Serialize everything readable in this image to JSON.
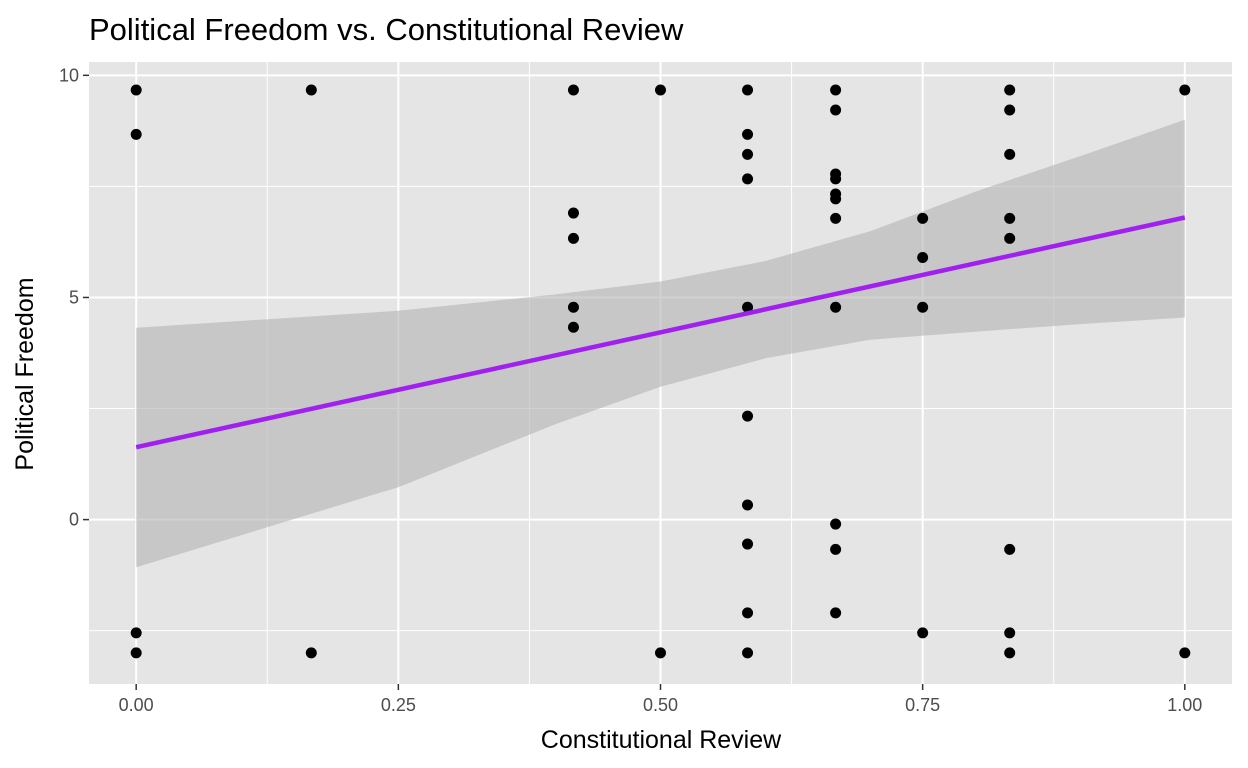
{
  "chart_data": {
    "type": "scatter",
    "title": "Political Freedom vs. Constitutional Review",
    "xlabel": "Constitutional Review",
    "ylabel": "Political Freedom",
    "xlim": [
      -0.045,
      1.045
    ],
    "ylim": [
      -3.7,
      10.3
    ],
    "x_ticks": [
      0.0,
      0.25,
      0.5,
      0.75,
      1.0
    ],
    "x_tick_labels": [
      "0.00",
      "0.25",
      "0.50",
      "0.75",
      "1.00"
    ],
    "y_ticks": [
      0,
      5,
      10
    ],
    "y_tick_labels": [
      "0",
      "5",
      "10"
    ],
    "grid": true,
    "legend": "none",
    "colors": {
      "panel": "#e5e5e5",
      "grid": "#ffffff",
      "points": "#000000",
      "fit_line": "#a020f0",
      "ribbon": "#b3b3b3"
    },
    "points": [
      {
        "x": 0.0,
        "y": 9.67
      },
      {
        "x": 0.0,
        "y": 8.67
      },
      {
        "x": 0.0,
        "y": -2.55
      },
      {
        "x": 0.0,
        "y": -3.0
      },
      {
        "x": 0.167,
        "y": 9.67
      },
      {
        "x": 0.167,
        "y": -3.0
      },
      {
        "x": 0.417,
        "y": 9.67
      },
      {
        "x": 0.417,
        "y": 6.9
      },
      {
        "x": 0.417,
        "y": 6.33
      },
      {
        "x": 0.417,
        "y": 4.78
      },
      {
        "x": 0.417,
        "y": 4.33
      },
      {
        "x": 0.5,
        "y": 9.67
      },
      {
        "x": 0.5,
        "y": -3.0
      },
      {
        "x": 0.583,
        "y": 9.67
      },
      {
        "x": 0.583,
        "y": 8.67
      },
      {
        "x": 0.583,
        "y": 8.22
      },
      {
        "x": 0.583,
        "y": 7.67
      },
      {
        "x": 0.583,
        "y": 4.78
      },
      {
        "x": 0.583,
        "y": 2.33
      },
      {
        "x": 0.583,
        "y": 0.33
      },
      {
        "x": 0.583,
        "y": -0.55
      },
      {
        "x": 0.583,
        "y": -2.1
      },
      {
        "x": 0.583,
        "y": -3.0
      },
      {
        "x": 0.667,
        "y": 9.67
      },
      {
        "x": 0.667,
        "y": 9.22
      },
      {
        "x": 0.667,
        "y": 7.78
      },
      {
        "x": 0.667,
        "y": 7.67
      },
      {
        "x": 0.667,
        "y": 7.33
      },
      {
        "x": 0.667,
        "y": 7.22
      },
      {
        "x": 0.667,
        "y": 6.78
      },
      {
        "x": 0.667,
        "y": 4.78
      },
      {
        "x": 0.667,
        "y": -0.1
      },
      {
        "x": 0.667,
        "y": -0.67
      },
      {
        "x": 0.667,
        "y": -2.1
      },
      {
        "x": 0.75,
        "y": 6.78
      },
      {
        "x": 0.75,
        "y": 5.9
      },
      {
        "x": 0.75,
        "y": 4.78
      },
      {
        "x": 0.75,
        "y": -2.55
      },
      {
        "x": 0.833,
        "y": 9.67
      },
      {
        "x": 0.833,
        "y": 9.22
      },
      {
        "x": 0.833,
        "y": 8.22
      },
      {
        "x": 0.833,
        "y": 6.78
      },
      {
        "x": 0.833,
        "y": 6.33
      },
      {
        "x": 0.833,
        "y": -0.67
      },
      {
        "x": 0.833,
        "y": -2.55
      },
      {
        "x": 0.833,
        "y": -3.0
      },
      {
        "x": 1.0,
        "y": 9.67
      },
      {
        "x": 1.0,
        "y": -3.0
      }
    ],
    "fit_line": {
      "x": [
        0.0,
        1.0
      ],
      "y": [
        1.63,
        6.8
      ]
    },
    "confidence_band": {
      "x": [
        0.0,
        0.25,
        0.4,
        0.5,
        0.6,
        0.7,
        0.8,
        0.9,
        1.0
      ],
      "lower": [
        -1.07,
        0.73,
        2.15,
        2.99,
        3.63,
        4.05,
        4.23,
        4.4,
        4.55
      ],
      "upper": [
        4.32,
        4.7,
        5.07,
        5.36,
        5.82,
        6.49,
        7.38,
        8.18,
        9.0
      ]
    }
  }
}
